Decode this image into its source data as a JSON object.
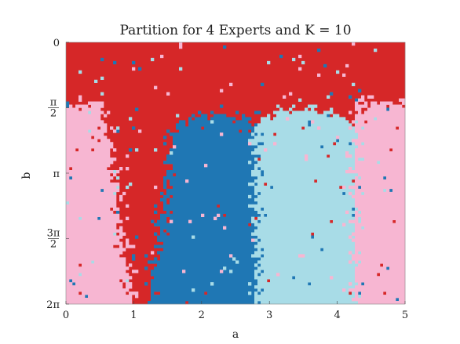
{
  "chart_data": {
    "type": "heatmap",
    "title": "Partition for 4 Experts and K = 10",
    "xlabel": "a",
    "ylabel": "b",
    "xlim": [
      0,
      5
    ],
    "ylim": [
      0,
      6.2832
    ],
    "y_inverted": true,
    "x_ticks": [
      {
        "value": 0,
        "label": "0"
      },
      {
        "value": 1,
        "label": "1"
      },
      {
        "value": 2,
        "label": "2"
      },
      {
        "value": 3,
        "label": "3"
      },
      {
        "value": 4,
        "label": "4"
      },
      {
        "value": 5,
        "label": "5"
      }
    ],
    "y_ticks": [
      {
        "value": 0,
        "label": "0"
      },
      {
        "value": 1.5708,
        "label": "π/2"
      },
      {
        "value": 3.1416,
        "label": "π"
      },
      {
        "value": 4.7124,
        "label": "3π/2"
      },
      {
        "value": 6.2832,
        "label": "2π"
      }
    ],
    "experts": [
      {
        "id": 1,
        "color": "#d62728"
      },
      {
        "id": 2,
        "color": "#1f77b4"
      },
      {
        "id": 3,
        "color": "#a8dce7"
      },
      {
        "id": 4,
        "color": "#f7b6d2"
      }
    ],
    "regions": [
      {
        "expert": 1,
        "description_region": "top band b < ~1.2 across all a, extending down as a V between a≈0.9 and a≈1.3 to b=2π"
      },
      {
        "expert": 2,
        "a_range": [
          1.3,
          2.8
        ],
        "b_range": [
          1.7,
          6.2832
        ]
      },
      {
        "expert": 3,
        "a_range": [
          2.8,
          4.2
        ],
        "b_range": [
          1.6,
          6.2832
        ]
      },
      {
        "expert": 4,
        "a_range_left": [
          0,
          0.9
        ],
        "a_range_right": [
          4.3,
          5
        ],
        "b_range": [
          1.4,
          6.2832
        ]
      }
    ]
  }
}
